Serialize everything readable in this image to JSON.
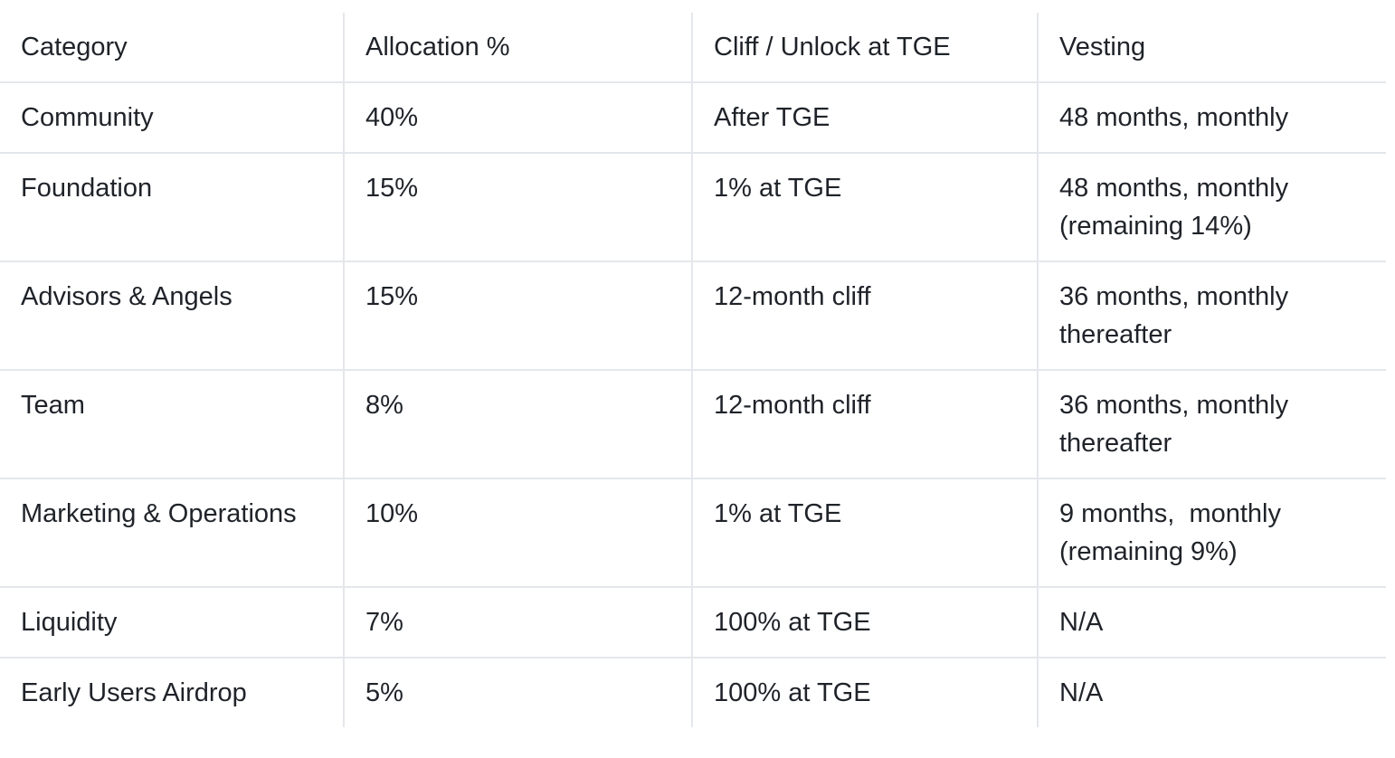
{
  "colors": {
    "border": "#e4e7eb",
    "text": "#1f2329",
    "background": "#ffffff"
  },
  "table": {
    "columns": [
      "Category",
      "Allocation %",
      "Cliff / Unlock at TGE",
      "Vesting"
    ],
    "rows": [
      [
        "Community",
        "40%",
        "After TGE",
        "48 months, monthly"
      ],
      [
        "Foundation",
        "15%",
        "1% at TGE",
        "48 months, monthly (remaining 14%)"
      ],
      [
        "Advisors & Angels",
        "15%",
        "12-month cliff",
        "36 months, monthly thereafter"
      ],
      [
        "Team",
        "8%",
        "12-month cliff",
        "36 months, monthly thereafter"
      ],
      [
        "Marketing & Operations",
        "10%",
        "1% at TGE",
        "9 months,  monthly (remaining 9%)"
      ],
      [
        "Liquidity",
        "7%",
        "100% at TGE",
        "N/A"
      ],
      [
        "Early Users Airdrop",
        "5%",
        "100% at TGE",
        "N/A"
      ]
    ]
  }
}
